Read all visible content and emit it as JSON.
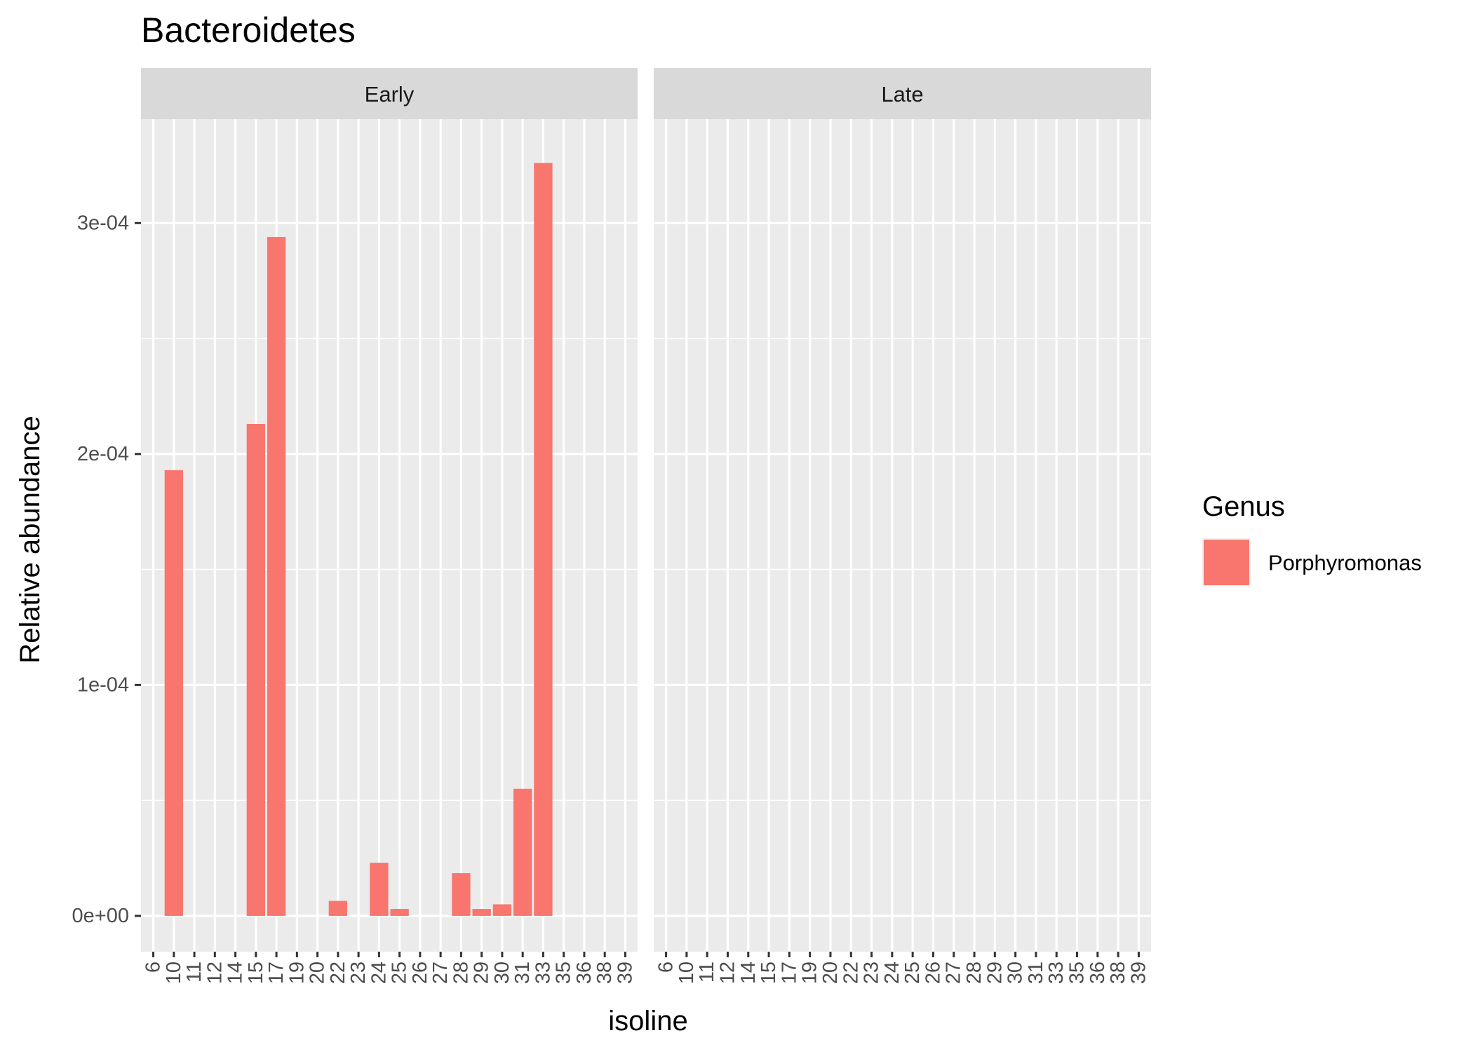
{
  "chart_data": {
    "type": "bar",
    "title": "Bacteroidetes",
    "xlabel": "isoline",
    "ylabel": "Relative abundance",
    "ylim": [
      -1.55e-05,
      0.000345
    ],
    "yticks": [
      0,
      0.0001,
      0.0002,
      0.0003
    ],
    "ytick_labels": [
      "0e+00",
      "1e-04",
      "2e-04",
      "3e-04"
    ],
    "grid": true,
    "legend": {
      "title": "Genus",
      "position": "right",
      "entries": [
        {
          "name": "Porphyromonas",
          "color": "#F8766D"
        }
      ]
    },
    "categories": [
      "6",
      "10",
      "11",
      "12",
      "14",
      "15",
      "17",
      "19",
      "20",
      "22",
      "23",
      "24",
      "25",
      "26",
      "27",
      "28",
      "29",
      "30",
      "31",
      "33",
      "35",
      "36",
      "38",
      "39"
    ],
    "panels": [
      {
        "label": "Early",
        "series": [
          {
            "name": "Porphyromonas",
            "color": "#F8766D",
            "values": [
              0,
              0.000193,
              0,
              0,
              0,
              0.000213,
              0.000294,
              0,
              0,
              6.5e-06,
              0,
              2.3e-05,
              3e-06,
              0,
              0,
              1.85e-05,
              3e-06,
              5e-06,
              5.5e-05,
              0.000326,
              0,
              0,
              0,
              0
            ]
          }
        ]
      },
      {
        "label": "Late",
        "series": [
          {
            "name": "Porphyromonas",
            "color": "#F8766D",
            "values": [
              0,
              0,
              0,
              0,
              0,
              0,
              0,
              0,
              0,
              0,
              0,
              0,
              0,
              0,
              0,
              0,
              0,
              0,
              0,
              0,
              0,
              0,
              0,
              0
            ]
          }
        ]
      }
    ]
  }
}
